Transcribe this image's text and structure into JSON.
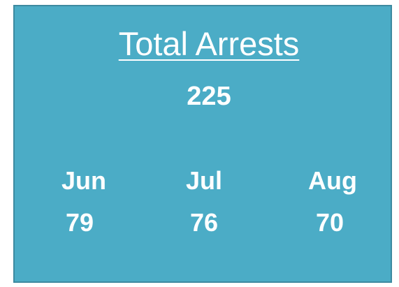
{
  "card": {
    "title": "Total Arrests",
    "total": 225,
    "months": [
      {
        "label": "Jun",
        "value": 79
      },
      {
        "label": "Jul",
        "value": 76
      },
      {
        "label": "Aug",
        "value": 70
      }
    ]
  }
}
